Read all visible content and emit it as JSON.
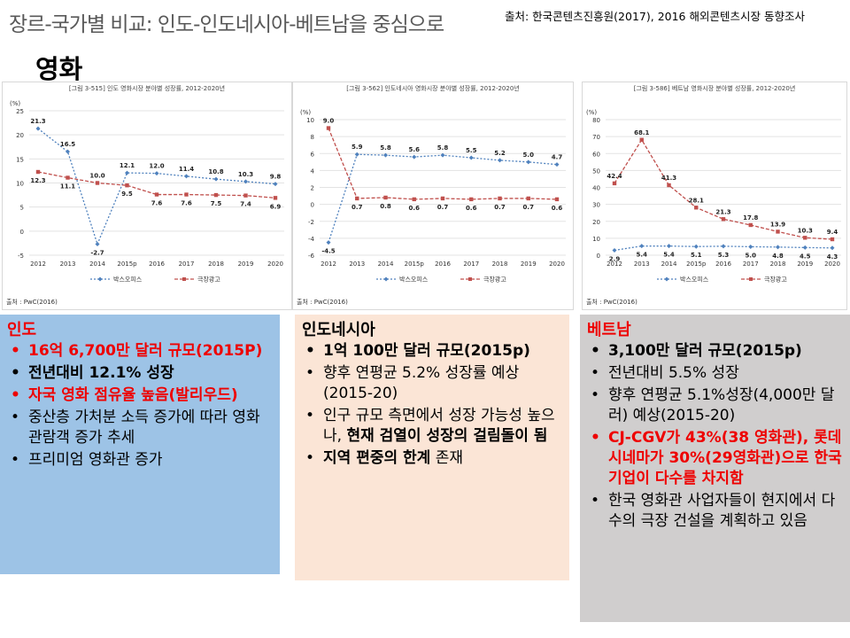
{
  "header": {
    "title": "장르-국가별 비교: 인도-인도네시아-베트남을 중심으로",
    "source": "출처: 한국콘텐츠진흥원(2017), 2016 해외콘텐츠시장 동향조사",
    "section": "영화"
  },
  "chart_data": [
    {
      "type": "line",
      "title": "[그림 3-515] 인도 영화시장 분야별 성장률, 2012-2020년",
      "ylabel": "(%)",
      "categories": [
        "2012",
        "2013",
        "2014",
        "2015p",
        "2016",
        "2017",
        "2018",
        "2019",
        "2020"
      ],
      "ylim": [
        -5,
        25
      ],
      "yticks": [
        -5,
        0,
        5,
        10,
        15,
        20,
        25
      ],
      "series": [
        {
          "name": "박스오피스",
          "color": "#4f81bd",
          "values": [
            21.3,
            16.5,
            -2.7,
            12.1,
            12.0,
            11.4,
            10.8,
            10.3,
            9.8
          ]
        },
        {
          "name": "극장광고",
          "color": "#c0504d",
          "values": [
            12.3,
            11.1,
            10.0,
            9.5,
            7.6,
            7.6,
            7.5,
            7.4,
            6.9
          ]
        }
      ],
      "source": "출처 : PwC(2016)"
    },
    {
      "type": "line",
      "title": "[그림 3-562] 인도네시아 영화시장 분야별 성장률, 2012-2020년",
      "ylabel": "(%)",
      "categories": [
        "2012",
        "2013",
        "2014",
        "2015p",
        "2016",
        "2017",
        "2018",
        "2019",
        "2020"
      ],
      "ylim": [
        -6,
        10
      ],
      "yticks": [
        -6,
        -4,
        -2,
        0,
        2,
        4,
        6,
        8,
        10
      ],
      "series": [
        {
          "name": "박스오피스",
          "color": "#4f81bd",
          "values": [
            -4.5,
            5.9,
            5.8,
            5.6,
            5.8,
            5.5,
            5.2,
            5.0,
            4.7
          ]
        },
        {
          "name": "극장광고",
          "color": "#c0504d",
          "values": [
            9.0,
            0.7,
            0.8,
            0.6,
            0.7,
            0.6,
            0.7,
            0.7,
            0.6
          ]
        }
      ],
      "source": "출처 : PwC(2016)"
    },
    {
      "type": "line",
      "title": "[그림 3-586] 베트남 영화시장 분야별 성장률, 2012-2020년",
      "ylabel": "(%)",
      "categories": [
        "2012",
        "2013",
        "2014",
        "2015p",
        "2016",
        "2017",
        "2018",
        "2019",
        "2020"
      ],
      "ylim": [
        0,
        80
      ],
      "yticks": [
        0,
        10,
        20,
        30,
        40,
        50,
        60,
        70,
        80
      ],
      "series": [
        {
          "name": "박스오피스",
          "color": "#4f81bd",
          "values": [
            2.9,
            5.4,
            5.4,
            5.1,
            5.3,
            5.0,
            4.8,
            4.5,
            4.3
          ]
        },
        {
          "name": "극장광고",
          "color": "#c0504d",
          "values": [
            42.4,
            68.1,
            41.3,
            28.1,
            21.3,
            17.8,
            13.9,
            10.3,
            9.4
          ]
        }
      ],
      "source": "출처 : PwC(2016)"
    }
  ],
  "panels": {
    "india": {
      "title": "인도",
      "b1": "16억 6,700만 달러 규모(2015P)",
      "b2": "전년대비 12.1% 성장",
      "b3": "자국 영화 점유율 높음(발리우드)",
      "b4": "중산층 가처분 소득 증가에 따라 영화 관람객 증가 추세",
      "b5": "프리미엄 영화관 증가",
      "bg": "#9dc3e6"
    },
    "indonesia": {
      "title": "인도네시아",
      "b1": "1억 100만 달러 규모(2015p)",
      "b2": "향후 연평균 5.2% 성장률 예상(2015-20)",
      "b3a": "인구 규모 측면에서 성장 가능성 높으나, ",
      "b3b": "현재 검열이 성장의 걸림돌이 됨",
      "b4a": "지역 편중의 한계",
      "b4b": " 존재",
      "bg": "#fbe5d6"
    },
    "vietnam": {
      "title": "베트남",
      "b1": "3,100만 달러 규모(2015p)",
      "b2": "전년대비 5.5% 성장",
      "b3": "향후 연평균 5.1%성장(4,000만 달러) 예상(2015-20)",
      "b4": "CJ-CGV가 43%(38 영화관), 롯데시네마가 30%(29영화관)으로 한국 기업이 다수를 차지함",
      "b5": "한국 영화관 사업자들이 현지에서 다수의 극장 건설을 계획하고 있음",
      "bg": "#d0cece"
    }
  }
}
